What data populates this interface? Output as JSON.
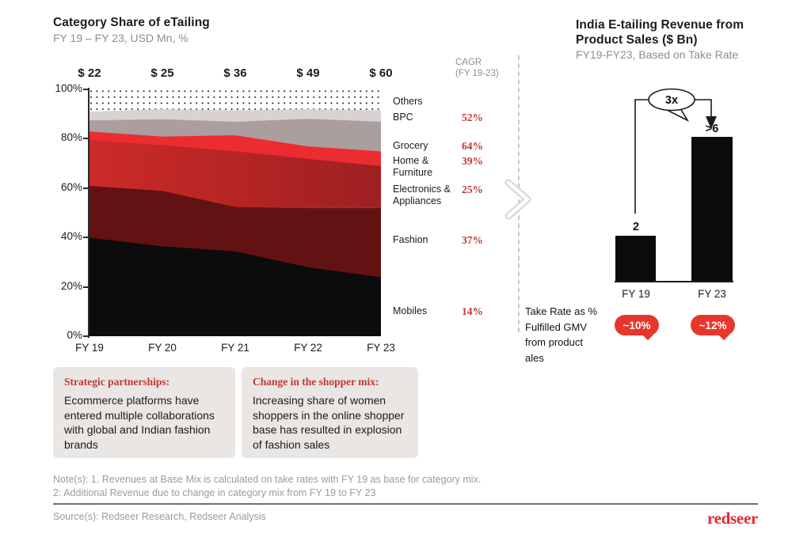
{
  "colors": {
    "accent_serif_red": "#c0393a",
    "pill_red": "#e8362c",
    "logo_red": "#e82730",
    "bar_black": "#0c0c0c",
    "callout_bg": "#e9e6e3",
    "muted_gray": "#8d8d8d"
  },
  "left_chart_header": {
    "title": "Category Share of eTailing",
    "subtitle": "FY 19 – FY 23, USD Mn, %"
  },
  "right_chart_header": {
    "title": "India E-tailing Revenue from\nProduct Sales ($ Bn)",
    "subtitle": "FY19-FY23, Based on Take Rate"
  },
  "cagr_header": "CAGR\n(FY 19-23)",
  "chart_data": [
    {
      "type": "area",
      "title": "Category Share of eTailing",
      "subtitle": "FY 19 – FY 23, USD Mn, %",
      "x": [
        "FY 19",
        "FY 20",
        "FY 21",
        "FY 22",
        "FY 23"
      ],
      "total_revenue_labels": [
        "$ 22",
        "$ 25",
        "$ 36",
        "$ 49",
        "$ 60"
      ],
      "ylim": [
        0,
        100
      ],
      "yticks": [
        "100%",
        "80%",
        "60%",
        "40%",
        "20%",
        "0%"
      ],
      "grid": false,
      "legend_position": "right",
      "stack_order": "bottom-to-top",
      "series": [
        {
          "name": "Mobiles",
          "values": [
            40,
            36.5,
            34.5,
            28,
            24
          ],
          "cagr": "14%",
          "color": "#0c0c0c"
        },
        {
          "name": "Fashion",
          "values": [
            21,
            22.5,
            18,
            24,
            28
          ],
          "cagr": "37%",
          "color": "#621212"
        },
        {
          "name": "Electronics & Appliances",
          "values": [
            18.5,
            18.5,
            22.5,
            20,
            17
          ],
          "cagr": "25%",
          "color": "#cc2a28",
          "color2": "#9e2021"
        },
        {
          "name": "Home & Furniture",
          "values": [
            3.5,
            3.5,
            6.5,
            5,
            6
          ],
          "cagr": "39%",
          "color": "#ec2c31"
        },
        {
          "name": "Grocery",
          "values": [
            4.5,
            7,
            5.5,
            11.2,
            12
          ],
          "cagr": "64%",
          "color": "#ab9e9e"
        },
        {
          "name": "BPC",
          "values": [
            3.5,
            4,
            4.5,
            3.8,
            4.5
          ],
          "cagr": "52%",
          "color": "#d9d2d2"
        },
        {
          "name": "Others",
          "values": [
            9,
            8,
            8.5,
            8,
            8.5
          ],
          "cagr": "",
          "color": "#ffffff",
          "pattern": "dots"
        }
      ]
    },
    {
      "type": "bar",
      "title": "India E-tailing Revenue from Product Sales ($ Bn)",
      "subtitle": "FY19-FY23, Based on Take Rate",
      "categories": [
        "FY 19",
        "FY 23"
      ],
      "values": [
        2,
        6.3
      ],
      "value_labels": [
        "2",
        ">6"
      ],
      "growth_label": "3x",
      "bar_color": "#0c0c0c",
      "take_rate": {
        "label": "Take Rate as %\nFulfilled GMV\nfrom product\nales",
        "values": [
          "~10%",
          "~12%"
        ]
      }
    }
  ],
  "callouts": [
    {
      "heading": "Strategic partnerships:",
      "body": "Ecommerce platforms have entered multiple collaborations with global and Indian fashion brands"
    },
    {
      "heading": "Change in the shopper mix:",
      "body": "Increasing share of women shoppers in the online shopper base has resulted in explosion of fashion sales"
    }
  ],
  "notes": "Note(s): 1. Revenues at Base Mix is calculated on take rates with FY 19 as base for category mix.\n2: Additional Revenue due to change in category mix from FY 19 to FY 23",
  "source": "Source(s): Redseer Research, Redseer Analysis",
  "logo_text": "redseer"
}
